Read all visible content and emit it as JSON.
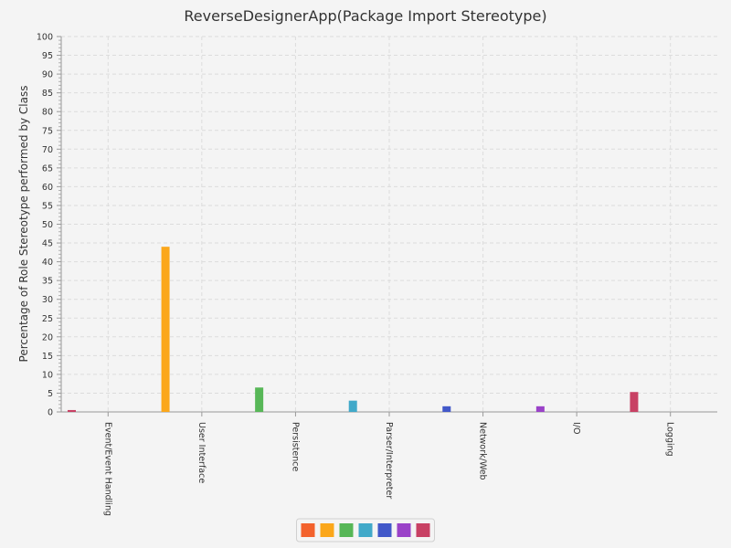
{
  "chart_data": {
    "type": "bar",
    "title": "ReverseDesignerApp(Package Import Stereotype)",
    "xlabel": "",
    "ylabel": "Percentage of Role Stereotype performed by Class",
    "ylim": [
      0,
      100
    ],
    "ytick_step": 5,
    "grid": true,
    "legend_position": "bottom-center",
    "categories": [
      "Event/Event Handling",
      "User Interface",
      "Persistence",
      "Parser/Interpreter",
      "Network/Web",
      "I/O",
      "Logging"
    ],
    "values": [
      0.5,
      44,
      6.5,
      3,
      1.5,
      1.5,
      5.3
    ],
    "series_colors": [
      "#f3622d",
      "#fba71b",
      "#57b757",
      "#41a9c9",
      "#4258c9",
      "#9a42c8",
      "#c84164"
    ],
    "first_bar_color": "#c84164"
  }
}
